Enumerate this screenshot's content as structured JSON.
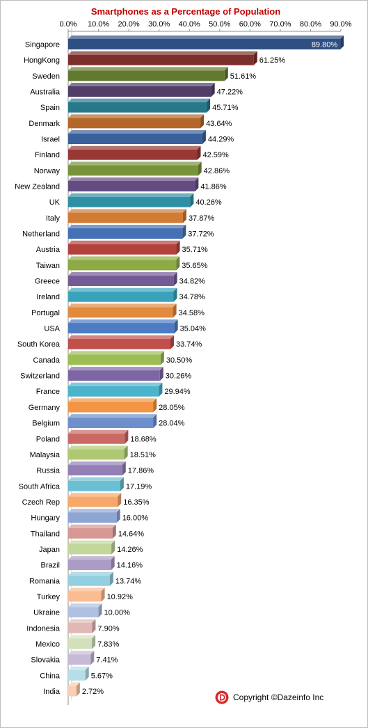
{
  "chart_data": {
    "type": "bar",
    "orientation": "horizontal",
    "title": "Smartphones as a Percentage of Population",
    "xlim": [
      0,
      90
    ],
    "x_ticks": [
      "0.0%",
      "10.0%",
      "20.0%",
      "30.0%",
      "40.0%",
      "50.0%",
      "60.0%",
      "70.0%",
      "80.0%",
      "90.0%"
    ],
    "x_axis_position": "top",
    "grid": false,
    "categories": [
      "Singapore",
      "HongKong",
      "Sweden",
      "Australia",
      "Spain",
      "Denmark",
      "Israel",
      "Finland",
      "Norway",
      "New Zealand",
      "UK",
      "Italy",
      "Netherland",
      "Austria",
      "Taiwan",
      "Greece",
      "Ireland",
      "Portugal",
      "USA",
      "South Korea",
      "Canada",
      "Switzerland",
      "France",
      "Germany",
      "Belgium",
      "Poland",
      "Malaysia",
      "Russia",
      "South Africa",
      "Czech Rep",
      "Hungary",
      "Thailand",
      "Japan",
      "Brazil",
      "Romania",
      "Turkey",
      "Ukraine",
      "Indonesia",
      "Mexico",
      "Slovakia",
      "China",
      "India"
    ],
    "values": [
      89.8,
      61.25,
      51.61,
      47.22,
      45.71,
      43.64,
      44.29,
      42.59,
      42.86,
      41.86,
      40.26,
      37.87,
      37.72,
      35.71,
      35.65,
      34.82,
      34.78,
      34.58,
      35.04,
      33.74,
      30.5,
      30.26,
      29.94,
      28.05,
      28.04,
      18.68,
      18.51,
      17.86,
      17.19,
      16.35,
      16.0,
      14.64,
      14.26,
      14.16,
      13.74,
      10.92,
      10.0,
      7.9,
      7.83,
      7.41,
      5.67,
      2.72
    ],
    "value_labels": [
      "89.80%",
      "61.25%",
      "51.61%",
      "47.22%",
      "45.71%",
      "43.64%",
      "44.29%",
      "42.59%",
      "42.86%",
      "41.86%",
      "40.26%",
      "37.87%",
      "37.72%",
      "35.71%",
      "35.65%",
      "34.82%",
      "34.78%",
      "34.58%",
      "35.04%",
      "33.74%",
      "30.50%",
      "30.26%",
      "29.94%",
      "28.05%",
      "28.04%",
      "18.68%",
      "18.51%",
      "17.86%",
      "17.19%",
      "16.35%",
      "16.00%",
      "14.64%",
      "14.26%",
      "14.16%",
      "13.74%",
      "10.92%",
      "10.00%",
      "7.90%",
      "7.83%",
      "7.41%",
      "5.67%",
      "2.72%"
    ],
    "colors": [
      "#2e4f82",
      "#7d2f2c",
      "#627a2f",
      "#513f6a",
      "#27798a",
      "#b5672a",
      "#3a609b",
      "#973834",
      "#789339",
      "#634c80",
      "#2f90a5",
      "#d17b35",
      "#4670b4",
      "#b3423e",
      "#8daa45",
      "#745b96",
      "#3aa3bb",
      "#e18a3e",
      "#4d7cc4",
      "#c14f4b",
      "#9dbd55",
      "#7e66a4",
      "#4bb4cc",
      "#f39542",
      "#6d8fcc",
      "#cb6965",
      "#afc972",
      "#937fb6",
      "#6bbfd3",
      "#f7a869",
      "#8fa6d5",
      "#d79794",
      "#c3d69c",
      "#ab9cc5",
      "#93cfde",
      "#f9bc93",
      "#afc0e0",
      "#e1b8b6",
      "#d2e1bb",
      "#c6bbd7",
      "#b7dde9",
      "#fbcfb2"
    ]
  },
  "copyright": {
    "text": "Copyright ©Dazeinfo Inc",
    "icon": "dazeinfo-logo-icon",
    "icon_color": "#d92b2b"
  }
}
